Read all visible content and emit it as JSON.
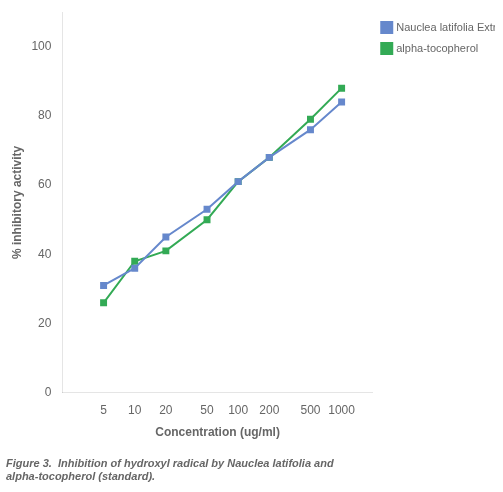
{
  "chart_data": {
    "type": "line",
    "caption": "Figure 3.  Inhibition of hydroxyl radical by Nauclea latifolia and\nalpha-tocopherol (standard).",
    "x": [
      5,
      10,
      20,
      50,
      100,
      200,
      500,
      1000
    ],
    "series": [
      {
        "name": "Nauclea latifolia Extract",
        "color": "#6688cc",
        "marker": "square",
        "values": [
          31,
          36,
          45,
          53,
          61,
          68,
          76,
          84
        ]
      },
      {
        "name": "alpha-tocopherol",
        "color": "#33aa55",
        "marker": "square",
        "values": [
          26,
          38,
          41,
          50,
          61,
          68,
          79,
          88
        ]
      }
    ],
    "xlabel": "Concentration (ug/ml)",
    "ylabel": "% inhibitory activity",
    "log": "x",
    "xlim": [
      2,
      2000
    ],
    "xticks": [
      5,
      10,
      20,
      50,
      100,
      200,
      500,
      1000
    ],
    "ylim": [
      0,
      110
    ],
    "yticks": [
      0,
      20,
      40,
      60,
      80,
      100
    ],
    "grid": false,
    "legend": "right"
  }
}
